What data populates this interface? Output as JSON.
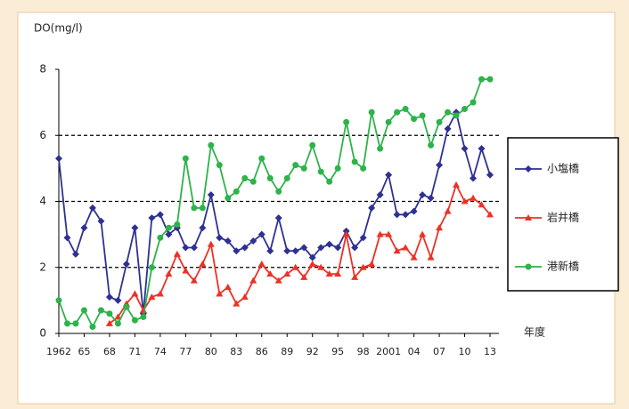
{
  "chart_data": {
    "type": "line",
    "y_label": "DO(mg/l)",
    "x_label": "年度",
    "x": [
      1962,
      1963,
      1964,
      1965,
      1966,
      1967,
      1968,
      1969,
      1970,
      1971,
      1972,
      1973,
      1974,
      1975,
      1976,
      1977,
      1978,
      1979,
      1980,
      1981,
      1982,
      1983,
      1984,
      1985,
      1986,
      1987,
      1988,
      1989,
      1990,
      1991,
      1992,
      1993,
      1994,
      1995,
      1996,
      1997,
      1998,
      1999,
      2000,
      2001,
      2002,
      2003,
      2004,
      2005,
      2006,
      2007,
      2008,
      2009,
      2010,
      2011,
      2012,
      2013
    ],
    "xlim": [
      1962,
      2013
    ],
    "xticks": [
      1962,
      {
        "value": 1965,
        "label": "65"
      },
      {
        "value": 1968,
        "label": "68"
      },
      {
        "value": 1971,
        "label": "71"
      },
      {
        "value": 1974,
        "label": "74"
      },
      {
        "value": 1977,
        "label": "77"
      },
      {
        "value": 1980,
        "label": "80"
      },
      {
        "value": 1983,
        "label": "83"
      },
      {
        "value": 1986,
        "label": "86"
      },
      {
        "value": 1989,
        "label": "89"
      },
      {
        "value": 1992,
        "label": "92"
      },
      {
        "value": 1995,
        "label": "95"
      },
      {
        "value": 1998,
        "label": "98"
      },
      2001,
      {
        "value": 2004,
        "label": "04"
      },
      {
        "value": 2007,
        "label": "07"
      },
      {
        "value": 2010,
        "label": "10"
      },
      {
        "value": 2013,
        "label": "13"
      }
    ],
    "ylim": [
      0,
      8
    ],
    "yticks": [
      0,
      2,
      4,
      6,
      8
    ],
    "grid": true,
    "series": [
      {
        "name": "小塩橋",
        "color": "#2e3192",
        "marker": "diamond",
        "values": [
          5.3,
          2.9,
          2.4,
          3.2,
          3.8,
          3.4,
          1.1,
          1.0,
          2.1,
          3.2,
          0.6,
          3.5,
          3.6,
          3.0,
          3.2,
          2.6,
          2.6,
          3.2,
          4.2,
          2.9,
          2.8,
          2.5,
          2.6,
          2.8,
          3.0,
          2.5,
          3.5,
          2.5,
          2.5,
          2.6,
          2.3,
          2.6,
          2.7,
          2.6,
          3.1,
          2.6,
          2.9,
          3.8,
          4.2,
          4.8,
          3.6,
          3.6,
          3.7,
          4.2,
          4.1,
          5.1,
          6.2,
          6.7,
          5.6,
          4.7,
          5.6,
          4.8
        ]
      },
      {
        "name": "岩井橋",
        "color": "#ed3124",
        "marker": "triangle",
        "values": [
          null,
          null,
          null,
          null,
          null,
          null,
          0.3,
          0.5,
          0.9,
          1.2,
          0.7,
          1.1,
          1.2,
          1.8,
          2.4,
          1.9,
          1.6,
          2.1,
          2.7,
          1.2,
          1.4,
          0.9,
          1.1,
          1.6,
          2.1,
          1.8,
          1.6,
          1.8,
          2.0,
          1.7,
          2.1,
          2.0,
          1.8,
          1.8,
          3.0,
          1.7,
          2.0,
          2.1,
          3.0,
          3.0,
          2.5,
          2.6,
          2.3,
          3.0,
          2.3,
          3.2,
          3.7,
          4.5,
          4.0,
          4.1,
          3.9,
          3.6
        ]
      },
      {
        "name": "港新橋",
        "color": "#2db34a",
        "marker": "circle",
        "values": [
          1.0,
          0.3,
          0.3,
          0.7,
          0.2,
          0.7,
          0.6,
          0.3,
          0.8,
          0.4,
          0.5,
          2.0,
          2.9,
          3.2,
          3.3,
          5.3,
          3.8,
          3.8,
          5.7,
          5.1,
          4.1,
          4.3,
          4.7,
          4.6,
          5.3,
          4.7,
          4.3,
          4.7,
          5.1,
          5.0,
          5.7,
          4.9,
          4.6,
          5.0,
          6.4,
          5.2,
          5.0,
          6.7,
          5.6,
          6.4,
          6.7,
          6.8,
          6.5,
          6.6,
          5.7,
          6.4,
          6.7,
          6.6,
          6.8,
          7.0,
          7.7,
          7.7
        ]
      }
    ]
  }
}
